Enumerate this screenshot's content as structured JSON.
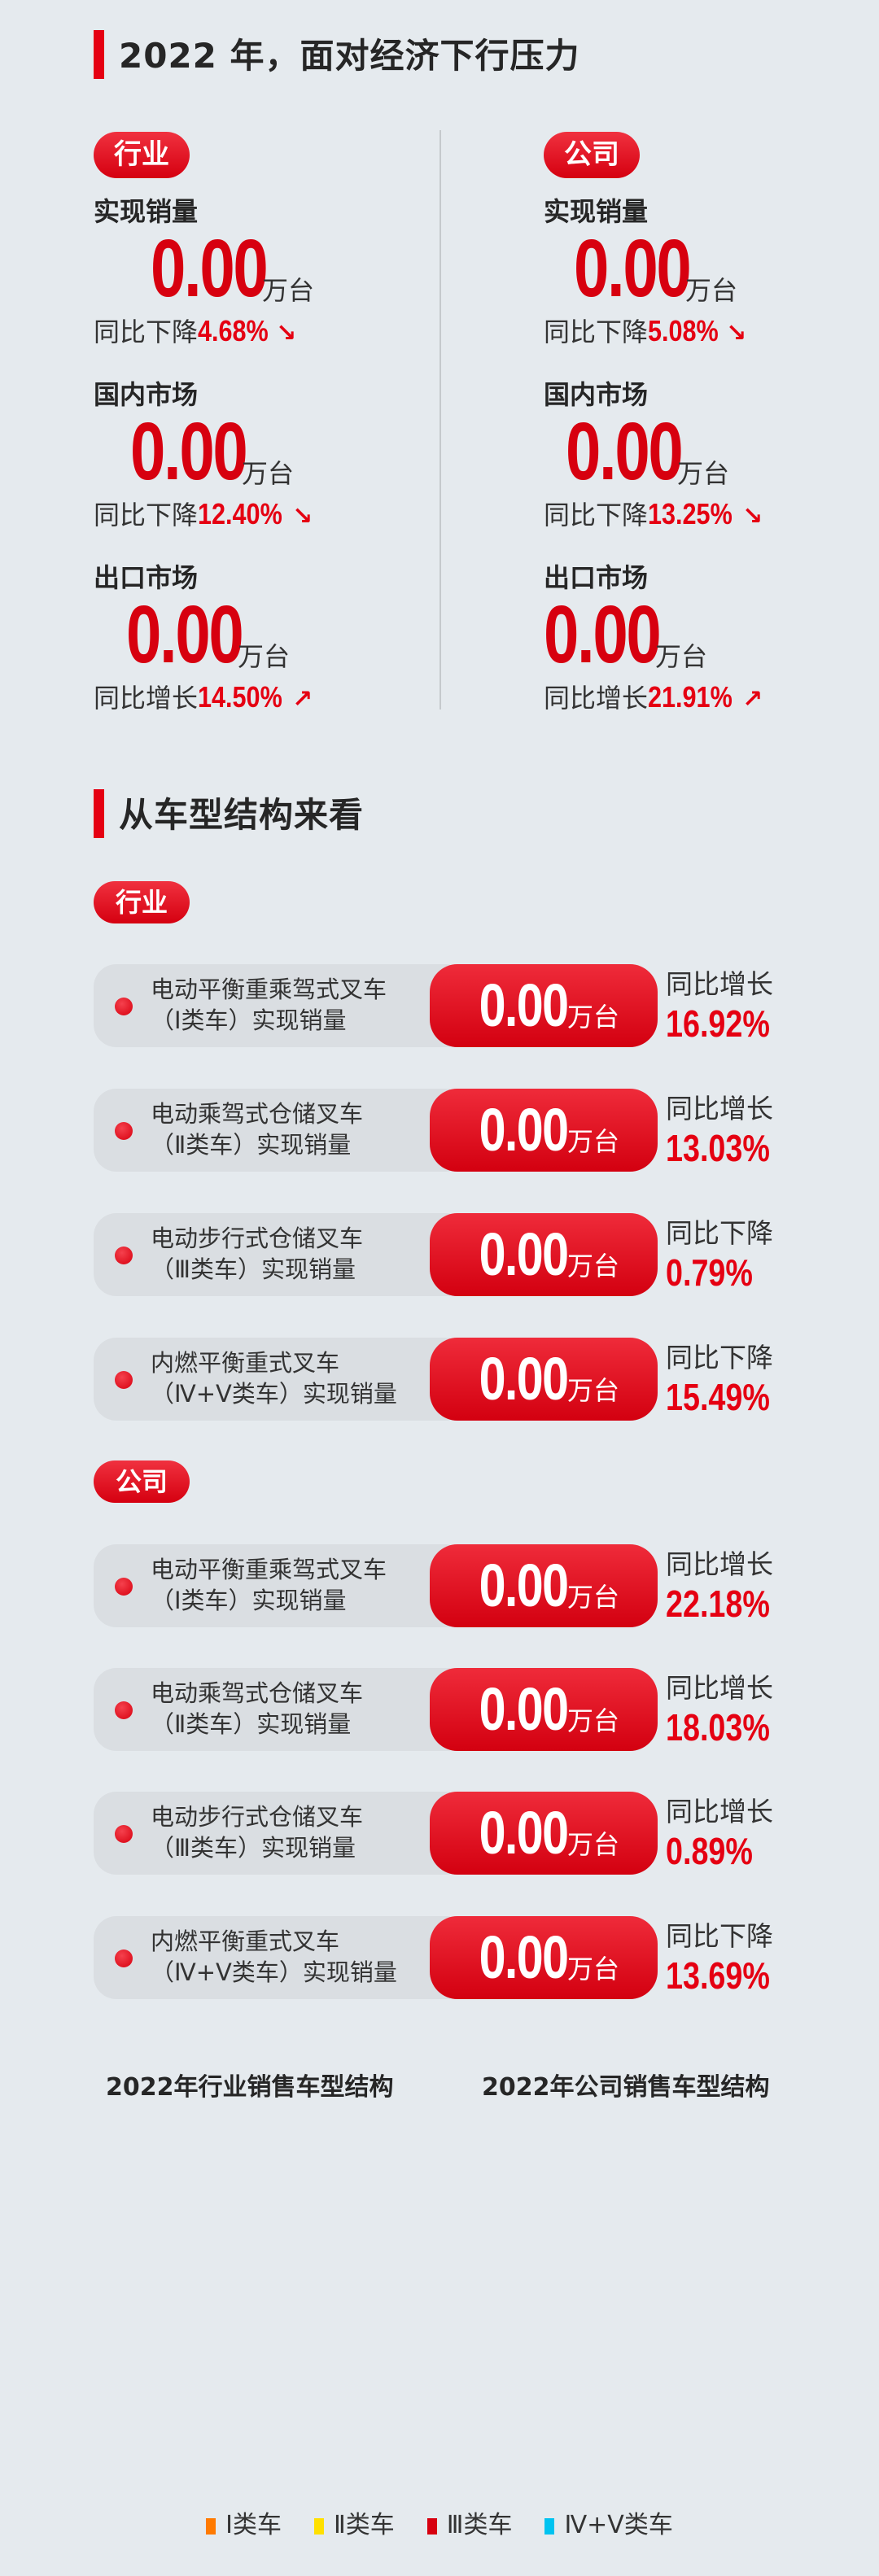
{
  "section1": {
    "title": "2022 年，面对经济下行压力",
    "columns": [
      {
        "tag": "行业",
        "blocks": [
          {
            "label": "实现销量",
            "value": "0.00",
            "unit": "万台",
            "yoy_label": "同比下降",
            "yoy": "4.68%",
            "trend": "down"
          },
          {
            "label": "国内市场",
            "value": "0.00",
            "unit": "万台",
            "yoy_label": "同比下降",
            "yoy": "12.40%",
            "trend": "down"
          },
          {
            "label": "出口市场",
            "value": "0.00",
            "unit": "万台",
            "yoy_label": "同比增长",
            "yoy": "14.50%",
            "trend": "up"
          }
        ]
      },
      {
        "tag": "公司",
        "blocks": [
          {
            "label": "实现销量",
            "value": "0.00",
            "unit": "万台",
            "yoy_label": "同比下降",
            "yoy": "5.08%",
            "trend": "down"
          },
          {
            "label": "国内市场",
            "value": "0.00",
            "unit": "万台",
            "yoy_label": "同比下降",
            "yoy": "13.25%",
            "trend": "down"
          },
          {
            "label": "出口市场",
            "value": "0.00",
            "unit": "万台",
            "yoy_label": "同比增长",
            "yoy": "21.91%",
            "trend": "up"
          }
        ]
      }
    ]
  },
  "section2": {
    "title": "从车型结构来看",
    "groups": [
      {
        "tag": "行业",
        "cards": [
          {
            "line1": "电动平衡重乘驾式叉车",
            "line2": "（Ⅰ类车）实现销量",
            "value": "0.00",
            "unit": "万台",
            "yoy_label": "同比增长",
            "yoy": "16.92%"
          },
          {
            "line1": "电动乘驾式仓储叉车",
            "line2": "（Ⅱ类车）实现销量",
            "value": "0.00",
            "unit": "万台",
            "yoy_label": "同比增长",
            "yoy": "13.03%"
          },
          {
            "line1": "电动步行式仓储叉车",
            "line2": "（Ⅲ类车）实现销量",
            "value": "0.00",
            "unit": "万台",
            "yoy_label": "同比下降",
            "yoy": "0.79%"
          },
          {
            "line1": "内燃平衡重式叉车",
            "line2": "（Ⅳ+Ⅴ类车）实现销量",
            "value": "0.00",
            "unit": "万台",
            "yoy_label": "同比下降",
            "yoy": "15.49%"
          }
        ]
      },
      {
        "tag": "公司",
        "cards": [
          {
            "line1": "电动平衡重乘驾式叉车",
            "line2": "（Ⅰ类车）实现销量",
            "value": "0.00",
            "unit": "万台",
            "yoy_label": "同比增长",
            "yoy": "22.18%"
          },
          {
            "line1": "电动乘驾式仓储叉车",
            "line2": "（Ⅱ类车）实现销量",
            "value": "0.00",
            "unit": "万台",
            "yoy_label": "同比增长",
            "yoy": "18.03%"
          },
          {
            "line1": "电动步行式仓储叉车",
            "line2": "（Ⅲ类车）实现销量",
            "value": "0.00",
            "unit": "万台",
            "yoy_label": "同比增长",
            "yoy": "0.89%"
          },
          {
            "line1": "内燃平衡重式叉车",
            "line2": "（Ⅳ+Ⅴ类车）实现销量",
            "value": "0.00",
            "unit": "万台",
            "yoy_label": "同比下降",
            "yoy": "13.69%"
          }
        ]
      }
    ]
  },
  "charts": {
    "industry_title": "2022年行业销售车型结构",
    "company_title": "2022年公司销售车型结构"
  },
  "legend": [
    {
      "label": "Ⅰ类车",
      "color": "#ff7a00"
    },
    {
      "label": "Ⅱ类车",
      "color": "#ffe000"
    },
    {
      "label": "Ⅲ类车",
      "color": "#d7000f"
    },
    {
      "label": "Ⅳ+Ⅴ类车",
      "color": "#00c3f0"
    }
  ],
  "colors": {
    "accent": "#e50012",
    "background": "#e5eaee"
  }
}
